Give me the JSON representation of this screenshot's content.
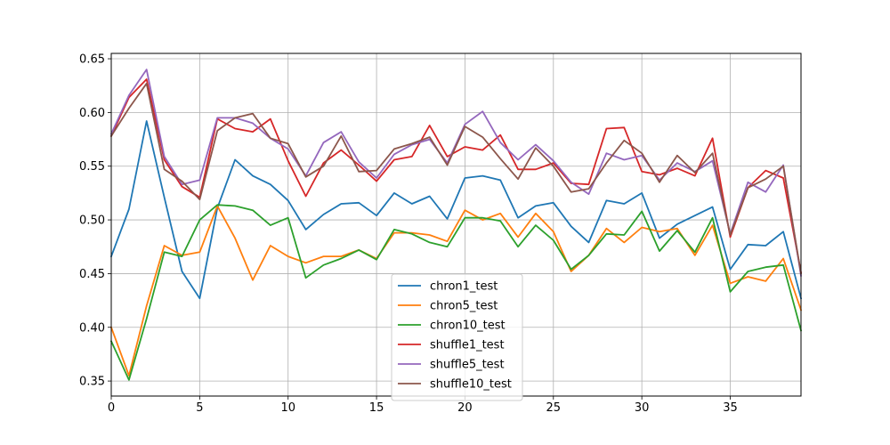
{
  "chart_data": {
    "type": "line",
    "xlim": [
      0,
      39
    ],
    "ylim": [
      0.336,
      0.655
    ],
    "xticks": [
      0,
      5,
      10,
      15,
      20,
      25,
      30,
      35
    ],
    "yticks": [
      0.35,
      0.4,
      0.45,
      0.5,
      0.55,
      0.6,
      0.65
    ],
    "xtick_labels": [
      "0",
      "5",
      "10",
      "15",
      "20",
      "25",
      "30",
      "35"
    ],
    "ytick_labels": [
      "0.35",
      "0.40",
      "0.45",
      "0.50",
      "0.55",
      "0.60",
      "0.65"
    ],
    "grid": true,
    "legend": "lower-center",
    "x": [
      0,
      1,
      2,
      3,
      4,
      5,
      6,
      7,
      8,
      9,
      10,
      11,
      12,
      13,
      14,
      15,
      16,
      17,
      18,
      19,
      20,
      21,
      22,
      23,
      24,
      25,
      26,
      27,
      28,
      29,
      30,
      31,
      32,
      33,
      34,
      35,
      36,
      37,
      38,
      39
    ],
    "series": [
      {
        "name": "chron1_test",
        "color": "#1f77b4",
        "values": [
          0.466,
          0.51,
          0.592,
          0.521,
          0.452,
          0.427,
          0.511,
          0.556,
          0.541,
          0.533,
          0.518,
          0.491,
          0.505,
          0.515,
          0.516,
          0.504,
          0.525,
          0.515,
          0.522,
          0.501,
          0.539,
          0.541,
          0.537,
          0.502,
          0.513,
          0.516,
          0.494,
          0.479,
          0.518,
          0.515,
          0.525,
          0.483,
          0.496,
          0.504,
          0.512,
          0.454,
          0.477,
          0.476,
          0.489,
          0.427
        ]
      },
      {
        "name": "chron5_test",
        "color": "#ff7f0e",
        "values": [
          0.4,
          0.355,
          0.42,
          0.476,
          0.467,
          0.47,
          0.513,
          0.483,
          0.444,
          0.476,
          0.466,
          0.46,
          0.466,
          0.466,
          0.472,
          0.464,
          0.488,
          0.488,
          0.486,
          0.48,
          0.509,
          0.5,
          0.506,
          0.484,
          0.506,
          0.489,
          0.452,
          0.467,
          0.492,
          0.479,
          0.493,
          0.489,
          0.492,
          0.467,
          0.495,
          0.441,
          0.447,
          0.443,
          0.464,
          0.416
        ]
      },
      {
        "name": "chron10_test",
        "color": "#2ca02c",
        "values": [
          0.387,
          0.351,
          0.408,
          0.47,
          0.466,
          0.5,
          0.514,
          0.513,
          0.509,
          0.495,
          0.502,
          0.446,
          0.458,
          0.464,
          0.472,
          0.463,
          0.491,
          0.487,
          0.479,
          0.475,
          0.502,
          0.502,
          0.499,
          0.475,
          0.495,
          0.481,
          0.454,
          0.467,
          0.487,
          0.486,
          0.508,
          0.471,
          0.49,
          0.47,
          0.502,
          0.433,
          0.452,
          0.456,
          0.458,
          0.397
        ]
      },
      {
        "name": "shuffle1_test",
        "color": "#d62728",
        "values": [
          0.578,
          0.614,
          0.631,
          0.556,
          0.531,
          0.521,
          0.594,
          0.585,
          0.582,
          0.594,
          0.555,
          0.522,
          0.553,
          0.565,
          0.551,
          0.536,
          0.556,
          0.559,
          0.588,
          0.559,
          0.568,
          0.565,
          0.579,
          0.547,
          0.547,
          0.553,
          0.534,
          0.533,
          0.585,
          0.586,
          0.545,
          0.542,
          0.548,
          0.541,
          0.576,
          0.484,
          0.53,
          0.546,
          0.539,
          0.451
        ]
      },
      {
        "name": "shuffle5_test",
        "color": "#9467bd",
        "values": [
          0.58,
          0.616,
          0.64,
          0.559,
          0.533,
          0.537,
          0.595,
          0.595,
          0.59,
          0.576,
          0.566,
          0.541,
          0.572,
          0.582,
          0.554,
          0.539,
          0.561,
          0.57,
          0.575,
          0.553,
          0.589,
          0.601,
          0.572,
          0.556,
          0.57,
          0.555,
          0.535,
          0.524,
          0.562,
          0.556,
          0.56,
          0.537,
          0.553,
          0.545,
          0.555,
          0.487,
          0.535,
          0.526,
          0.551,
          0.448
        ]
      },
      {
        "name": "shuffle10_test",
        "color": "#8c564b",
        "values": [
          0.578,
          0.604,
          0.627,
          0.547,
          0.536,
          0.519,
          0.583,
          0.595,
          0.599,
          0.576,
          0.571,
          0.54,
          0.55,
          0.578,
          0.545,
          0.546,
          0.566,
          0.571,
          0.577,
          0.551,
          0.587,
          0.577,
          0.557,
          0.538,
          0.567,
          0.55,
          0.526,
          0.529,
          0.553,
          0.574,
          0.562,
          0.535,
          0.56,
          0.544,
          0.562,
          0.486,
          0.53,
          0.538,
          0.55,
          0.45
        ]
      }
    ]
  }
}
